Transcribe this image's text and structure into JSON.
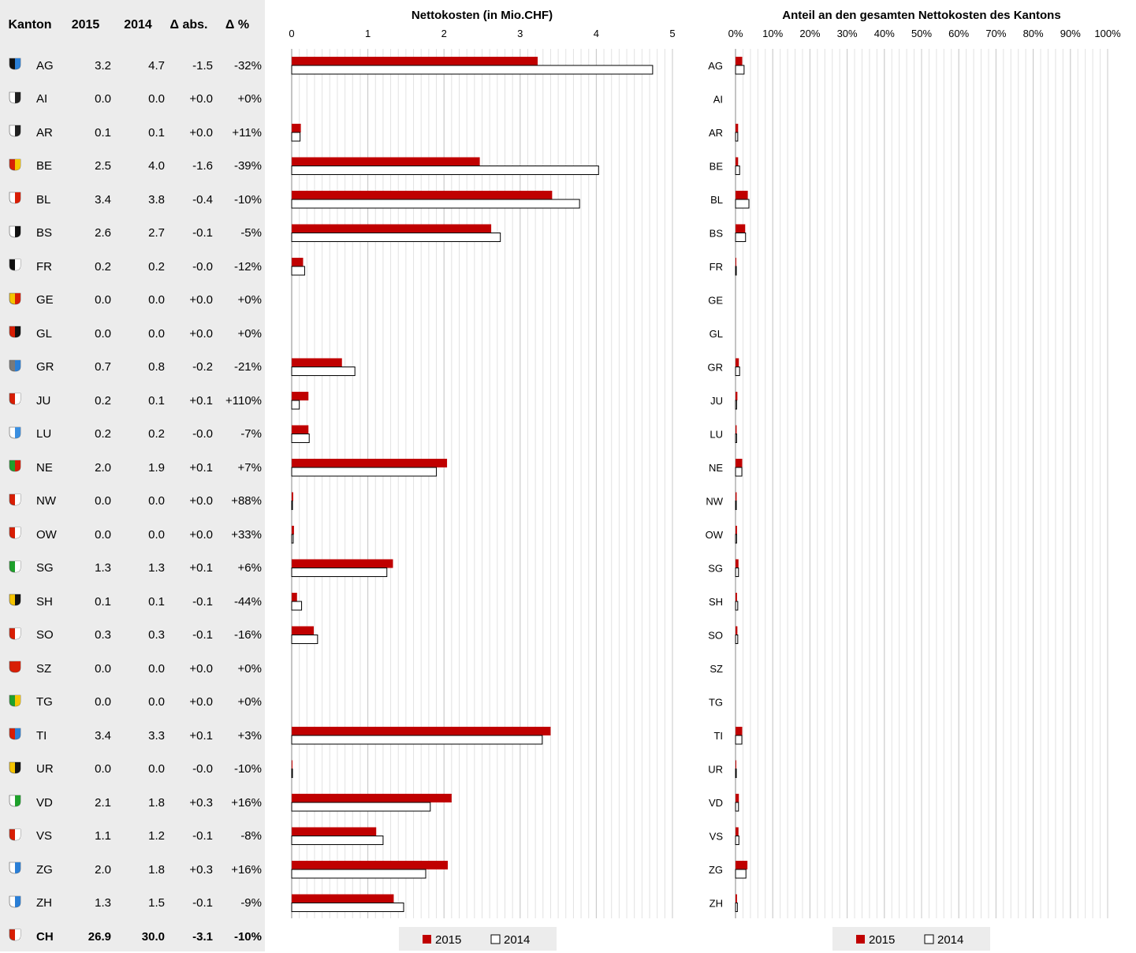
{
  "table": {
    "headers": [
      "Kanton",
      "2015",
      "2014",
      "Δ abs.",
      "Δ %"
    ],
    "rows": [
      {
        "kanton": "AG",
        "v2015": "3.2",
        "v2014": "4.7",
        "dabs": "-1.5",
        "dpct": "-32%",
        "flag_colors": [
          "#111111",
          "#2b7fd6"
        ]
      },
      {
        "kanton": "AI",
        "v2015": "0.0",
        "v2014": "0.0",
        "dabs": "+0.0",
        "dpct": "+0%",
        "flag_colors": [
          "#ffffff",
          "#222222"
        ]
      },
      {
        "kanton": "AR",
        "v2015": "0.1",
        "v2014": "0.1",
        "dabs": "+0.0",
        "dpct": "+11%",
        "flag_colors": [
          "#ffffff",
          "#222222"
        ]
      },
      {
        "kanton": "BE",
        "v2015": "2.5",
        "v2014": "4.0",
        "dabs": "-1.6",
        "dpct": "-39%",
        "flag_colors": [
          "#d81e05",
          "#f5c400"
        ]
      },
      {
        "kanton": "BL",
        "v2015": "3.4",
        "v2014": "3.8",
        "dabs": "-0.4",
        "dpct": "-10%",
        "flag_colors": [
          "#ffffff",
          "#d81e05"
        ]
      },
      {
        "kanton": "BS",
        "v2015": "2.6",
        "v2014": "2.7",
        "dabs": "-0.1",
        "dpct": "-5%",
        "flag_colors": [
          "#ffffff",
          "#111111"
        ]
      },
      {
        "kanton": "FR",
        "v2015": "0.2",
        "v2014": "0.2",
        "dabs": "-0.0",
        "dpct": "-12%",
        "flag_colors": [
          "#111111",
          "#ffffff"
        ]
      },
      {
        "kanton": "GE",
        "v2015": "0.0",
        "v2014": "0.0",
        "dabs": "+0.0",
        "dpct": "+0%",
        "flag_colors": [
          "#f5c400",
          "#d81e05"
        ]
      },
      {
        "kanton": "GL",
        "v2015": "0.0",
        "v2014": "0.0",
        "dabs": "+0.0",
        "dpct": "+0%",
        "flag_colors": [
          "#d81e05",
          "#111111"
        ]
      },
      {
        "kanton": "GR",
        "v2015": "0.7",
        "v2014": "0.8",
        "dabs": "-0.2",
        "dpct": "-21%",
        "flag_colors": [
          "#7a7a7a",
          "#2b7fd6"
        ]
      },
      {
        "kanton": "JU",
        "v2015": "0.2",
        "v2014": "0.1",
        "dabs": "+0.1",
        "dpct": "+110%",
        "flag_colors": [
          "#d81e05",
          "#ffffff"
        ]
      },
      {
        "kanton": "LU",
        "v2015": "0.2",
        "v2014": "0.2",
        "dabs": "-0.0",
        "dpct": "-7%",
        "flag_colors": [
          "#ffffff",
          "#3b8fe0"
        ]
      },
      {
        "kanton": "NE",
        "v2015": "2.0",
        "v2014": "1.9",
        "dabs": "+0.1",
        "dpct": "+7%",
        "flag_colors": [
          "#1fa12c",
          "#d81e05"
        ]
      },
      {
        "kanton": "NW",
        "v2015": "0.0",
        "v2014": "0.0",
        "dabs": "+0.0",
        "dpct": "+88%",
        "flag_colors": [
          "#d81e05",
          "#ffffff"
        ]
      },
      {
        "kanton": "OW",
        "v2015": "0.0",
        "v2014": "0.0",
        "dabs": "+0.0",
        "dpct": "+33%",
        "flag_colors": [
          "#d81e05",
          "#ffffff"
        ]
      },
      {
        "kanton": "SG",
        "v2015": "1.3",
        "v2014": "1.3",
        "dabs": "+0.1",
        "dpct": "+6%",
        "flag_colors": [
          "#1fa12c",
          "#ffffff"
        ]
      },
      {
        "kanton": "SH",
        "v2015": "0.1",
        "v2014": "0.1",
        "dabs": "-0.1",
        "dpct": "-44%",
        "flag_colors": [
          "#f5c400",
          "#111111"
        ]
      },
      {
        "kanton": "SO",
        "v2015": "0.3",
        "v2014": "0.3",
        "dabs": "-0.1",
        "dpct": "-16%",
        "flag_colors": [
          "#d81e05",
          "#ffffff"
        ]
      },
      {
        "kanton": "SZ",
        "v2015": "0.0",
        "v2014": "0.0",
        "dabs": "+0.0",
        "dpct": "+0%",
        "flag_colors": [
          "#d81e05",
          "#d81e05"
        ]
      },
      {
        "kanton": "TG",
        "v2015": "0.0",
        "v2014": "0.0",
        "dabs": "+0.0",
        "dpct": "+0%",
        "flag_colors": [
          "#1fa12c",
          "#f5c400"
        ]
      },
      {
        "kanton": "TI",
        "v2015": "3.4",
        "v2014": "3.3",
        "dabs": "+0.1",
        "dpct": "+3%",
        "flag_colors": [
          "#d81e05",
          "#2b7fd6"
        ]
      },
      {
        "kanton": "UR",
        "v2015": "0.0",
        "v2014": "0.0",
        "dabs": "-0.0",
        "dpct": "-10%",
        "flag_colors": [
          "#f5c400",
          "#111111"
        ]
      },
      {
        "kanton": "VD",
        "v2015": "2.1",
        "v2014": "1.8",
        "dabs": "+0.3",
        "dpct": "+16%",
        "flag_colors": [
          "#ffffff",
          "#1fa12c"
        ]
      },
      {
        "kanton": "VS",
        "v2015": "1.1",
        "v2014": "1.2",
        "dabs": "-0.1",
        "dpct": "-8%",
        "flag_colors": [
          "#d81e05",
          "#ffffff"
        ]
      },
      {
        "kanton": "ZG",
        "v2015": "2.0",
        "v2014": "1.8",
        "dabs": "+0.3",
        "dpct": "+16%",
        "flag_colors": [
          "#ffffff",
          "#2b7fd6"
        ]
      },
      {
        "kanton": "ZH",
        "v2015": "1.3",
        "v2014": "1.5",
        "dabs": "-0.1",
        "dpct": "-9%",
        "flag_colors": [
          "#ffffff",
          "#2b7fd6"
        ]
      }
    ],
    "total": {
      "kanton": "CH",
      "v2015": "26.9",
      "v2014": "30.0",
      "dabs": "-3.1",
      "dpct": "-10%",
      "flag_colors": [
        "#d81e05",
        "#ffffff"
      ]
    }
  },
  "colors": {
    "bar_2015": "#c00000",
    "bar_2014": "#ffffff",
    "bar_outline": "#000000",
    "panel_bg": "#ececec",
    "gridline": "#c8c8c8",
    "minor_gridline": "#e2e2e2"
  },
  "chart_data": [
    {
      "type": "bar",
      "orientation": "horizontal",
      "title": "Nettokosten (in Mio.CHF)",
      "categories": [
        "AG",
        "AI",
        "AR",
        "BE",
        "BL",
        "BS",
        "FR",
        "GE",
        "GL",
        "GR",
        "JU",
        "LU",
        "NE",
        "NW",
        "OW",
        "SG",
        "SH",
        "SO",
        "SZ",
        "TG",
        "TI",
        "UR",
        "VD",
        "VS",
        "ZG",
        "ZH"
      ],
      "series": [
        {
          "name": "2015",
          "color": "#c00000",
          "values": [
            3.23,
            0.0,
            0.12,
            2.47,
            3.42,
            2.62,
            0.15,
            0.0,
            0.0,
            0.66,
            0.22,
            0.22,
            2.04,
            0.02,
            0.03,
            1.33,
            0.07,
            0.29,
            0.0,
            0.0,
            3.4,
            0.01,
            2.1,
            1.11,
            2.05,
            1.34
          ]
        },
        {
          "name": "2014",
          "color": "#ffffff",
          "values": [
            4.74,
            0.0,
            0.11,
            4.03,
            3.78,
            2.74,
            0.17,
            0.0,
            0.0,
            0.83,
            0.1,
            0.23,
            1.9,
            0.01,
            0.02,
            1.25,
            0.13,
            0.34,
            0.0,
            0.0,
            3.29,
            0.01,
            1.82,
            1.2,
            1.76,
            1.47
          ]
        }
      ],
      "xlim": [
        0,
        5
      ],
      "ticks": [
        "0",
        "1",
        "2",
        "3",
        "4",
        "5"
      ],
      "grid": true,
      "legend": "bottom",
      "legend_labels": [
        "2015",
        "2014"
      ]
    },
    {
      "type": "bar",
      "orientation": "horizontal",
      "title": "Anteil an den gesamten Nettokosten des Kantons",
      "categories": [
        "AG",
        "AI",
        "AR",
        "BE",
        "BL",
        "BS",
        "FR",
        "GE",
        "GL",
        "GR",
        "JU",
        "LU",
        "NE",
        "NW",
        "OW",
        "SG",
        "SH",
        "SO",
        "SZ",
        "TG",
        "TI",
        "UR",
        "VD",
        "VS",
        "ZG",
        "ZH"
      ],
      "series": [
        {
          "name": "2015",
          "color": "#c00000",
          "values": [
            1.8,
            0.0,
            0.7,
            0.7,
            3.3,
            2.6,
            0.2,
            0.0,
            0.0,
            0.9,
            0.5,
            0.3,
            1.8,
            0.3,
            0.4,
            0.8,
            0.4,
            0.5,
            0.0,
            0.0,
            1.8,
            0.2,
            0.9,
            0.8,
            3.2,
            0.4
          ]
        },
        {
          "name": "2014",
          "color": "#ffffff",
          "values": [
            2.3,
            0.0,
            0.6,
            1.1,
            3.6,
            2.7,
            0.2,
            0.0,
            0.0,
            1.1,
            0.3,
            0.3,
            1.7,
            0.2,
            0.3,
            0.8,
            0.6,
            0.6,
            0.0,
            0.0,
            1.7,
            0.2,
            0.8,
            0.9,
            2.8,
            0.5
          ]
        }
      ],
      "xlim": [
        0,
        100
      ],
      "ticks": [
        "0%",
        "10%",
        "20%",
        "30%",
        "40%",
        "50%",
        "60%",
        "70%",
        "80%",
        "90%",
        "100%"
      ],
      "grid": true,
      "legend": "bottom",
      "legend_labels": [
        "2015",
        "2014"
      ]
    }
  ]
}
